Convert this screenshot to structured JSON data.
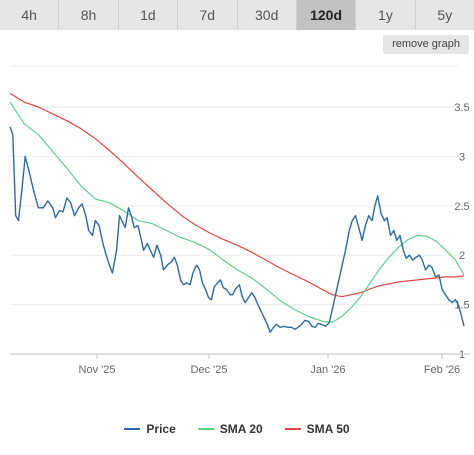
{
  "tabs": [
    {
      "label": "4h",
      "active": false
    },
    {
      "label": "8h",
      "active": false
    },
    {
      "label": "1d",
      "active": false
    },
    {
      "label": "7d",
      "active": false
    },
    {
      "label": "30d",
      "active": false
    },
    {
      "label": "120d",
      "active": true
    },
    {
      "label": "1y",
      "active": false
    },
    {
      "label": "5y",
      "active": false
    }
  ],
  "remove_graph_label": "remove graph",
  "colors": {
    "price": "#2b6aa6",
    "sma20": "#5fcf8a",
    "sma50": "#e0483e",
    "active_tab": "#c2c2c2"
  },
  "chart_data": {
    "type": "line",
    "x_ticks": [
      "Nov '25",
      "Dec '25",
      "Jan '26",
      "Feb '26"
    ],
    "y_ticks": [
      "1",
      "1.5",
      "2",
      "2.5",
      "3",
      "3.5"
    ],
    "ylim": [
      1,
      3.9
    ],
    "grid": true,
    "legend_position": "bottom-center",
    "x_range_days": [
      0,
      120
    ],
    "x_tick_days": [
      28,
      58,
      89,
      120
    ],
    "series": [
      {
        "name": "Price",
        "key": "price",
        "points": [
          [
            0,
            3.3
          ],
          [
            0.6,
            3.22
          ],
          [
            1.2,
            2.4
          ],
          [
            1.8,
            2.35
          ],
          [
            2.6,
            2.7
          ],
          [
            3.2,
            3.0
          ],
          [
            4,
            2.85
          ],
          [
            5,
            2.65
          ],
          [
            6,
            2.48
          ],
          [
            7,
            2.48
          ],
          [
            8,
            2.55
          ],
          [
            9,
            2.48
          ],
          [
            9.6,
            2.38
          ],
          [
            10.4,
            2.45
          ],
          [
            11.2,
            2.44
          ],
          [
            12,
            2.58
          ],
          [
            12.8,
            2.53
          ],
          [
            13.6,
            2.4
          ],
          [
            14.5,
            2.48
          ],
          [
            15.2,
            2.52
          ],
          [
            16,
            2.4
          ],
          [
            16.6,
            2.25
          ],
          [
            17.4,
            2.2
          ],
          [
            18,
            2.35
          ],
          [
            18.8,
            2.3
          ],
          [
            19.6,
            2.12
          ],
          [
            20.3,
            2.0
          ],
          [
            21,
            1.9
          ],
          [
            21.6,
            1.82
          ],
          [
            22.5,
            2.05
          ],
          [
            23.1,
            2.4
          ],
          [
            23.6,
            2.35
          ],
          [
            24.3,
            2.28
          ],
          [
            25,
            2.48
          ],
          [
            25.6,
            2.4
          ],
          [
            26.2,
            2.28
          ],
          [
            27,
            2.3
          ],
          [
            27.5,
            2.2
          ],
          [
            28.2,
            2.05
          ],
          [
            29,
            2.12
          ],
          [
            29.6,
            2.05
          ],
          [
            30.3,
            1.98
          ],
          [
            31,
            2.1
          ],
          [
            31.8,
            2.0
          ],
          [
            32.4,
            1.85
          ],
          [
            33.2,
            1.9
          ],
          [
            34,
            1.93
          ],
          [
            34.7,
            1.98
          ],
          [
            35.3,
            1.9
          ],
          [
            36,
            1.75
          ],
          [
            36.6,
            1.7
          ],
          [
            37.3,
            1.72
          ],
          [
            38,
            1.7
          ],
          [
            38.6,
            1.82
          ],
          [
            39.4,
            1.9
          ],
          [
            40,
            1.85
          ],
          [
            40.6,
            1.72
          ],
          [
            41.3,
            1.65
          ],
          [
            41.9,
            1.57
          ],
          [
            42.5,
            1.55
          ],
          [
            43.1,
            1.68
          ],
          [
            43.8,
            1.72
          ],
          [
            44.4,
            1.75
          ],
          [
            45,
            1.67
          ],
          [
            45.8,
            1.65
          ],
          [
            46.4,
            1.6
          ],
          [
            47,
            1.6
          ],
          [
            47.6,
            1.66
          ],
          [
            48.4,
            1.7
          ],
          [
            49,
            1.58
          ],
          [
            49.6,
            1.52
          ],
          [
            50.3,
            1.57
          ],
          [
            51,
            1.62
          ],
          [
            51.6,
            1.58
          ],
          [
            52.3,
            1.5
          ],
          [
            53,
            1.43
          ],
          [
            53.6,
            1.37
          ],
          [
            54.3,
            1.3
          ],
          [
            54.9,
            1.22
          ],
          [
            55.6,
            1.27
          ],
          [
            56.2,
            1.3
          ],
          [
            57,
            1.27
          ],
          [
            57.8,
            1.28
          ],
          [
            58.6,
            1.27
          ],
          [
            59.4,
            1.27
          ],
          [
            60.1,
            1.25
          ],
          [
            60.8,
            1.27
          ],
          [
            61.5,
            1.3
          ],
          [
            62.2,
            1.34
          ],
          [
            63,
            1.33
          ],
          [
            63.7,
            1.28
          ],
          [
            64.4,
            1.27
          ],
          [
            65,
            1.31
          ],
          [
            65.8,
            1.3
          ],
          [
            66.6,
            1.28
          ],
          [
            67.4,
            1.32
          ],
          [
            68,
            1.45
          ],
          [
            68.7,
            1.6
          ],
          [
            69.4,
            1.75
          ],
          [
            70.1,
            1.9
          ],
          [
            70.8,
            2.05
          ],
          [
            71.6,
            2.25
          ],
          [
            72.2,
            2.35
          ],
          [
            72.9,
            2.4
          ],
          [
            73.5,
            2.3
          ],
          [
            74.3,
            2.15
          ],
          [
            75,
            2.3
          ],
          [
            75.7,
            2.4
          ],
          [
            76.4,
            2.35
          ],
          [
            77,
            2.5
          ],
          [
            77.6,
            2.6
          ],
          [
            78.3,
            2.42
          ],
          [
            79,
            2.35
          ],
          [
            79.6,
            2.38
          ],
          [
            80.3,
            2.2
          ],
          [
            81,
            2.25
          ],
          [
            81.6,
            2.15
          ],
          [
            82.3,
            2.2
          ],
          [
            83,
            2.05
          ],
          [
            83.6,
            1.97
          ],
          [
            84.3,
            2.0
          ],
          [
            85,
            1.95
          ],
          [
            85.7,
            1.98
          ],
          [
            86.4,
            2.0
          ],
          [
            87,
            1.95
          ],
          [
            87.7,
            1.85
          ],
          [
            88.4,
            1.9
          ],
          [
            89,
            1.88
          ],
          [
            89.8,
            1.78
          ],
          [
            90.5,
            1.8
          ],
          [
            91.2,
            1.65
          ],
          [
            91.9,
            1.6
          ],
          [
            92.6,
            1.55
          ],
          [
            93.3,
            1.52
          ],
          [
            94,
            1.55
          ],
          [
            94.6,
            1.5
          ],
          [
            95.3,
            1.38
          ],
          [
            95.8,
            1.28
          ]
        ]
      },
      {
        "name": "SMA 20",
        "key": "sma20",
        "points": [
          [
            0,
            3.55
          ],
          [
            3,
            3.33
          ],
          [
            6,
            3.22
          ],
          [
            9,
            3.05
          ],
          [
            12,
            2.88
          ],
          [
            15,
            2.7
          ],
          [
            18,
            2.57
          ],
          [
            21,
            2.53
          ],
          [
            24,
            2.45
          ],
          [
            27,
            2.35
          ],
          [
            30,
            2.32
          ],
          [
            33,
            2.25
          ],
          [
            36,
            2.18
          ],
          [
            39,
            2.13
          ],
          [
            42,
            2.06
          ],
          [
            45,
            1.95
          ],
          [
            48,
            1.85
          ],
          [
            51,
            1.77
          ],
          [
            54,
            1.66
          ],
          [
            57,
            1.54
          ],
          [
            60,
            1.45
          ],
          [
            63,
            1.38
          ],
          [
            66,
            1.33
          ],
          [
            68,
            1.32
          ],
          [
            70,
            1.38
          ],
          [
            72,
            1.47
          ],
          [
            74,
            1.58
          ],
          [
            76,
            1.72
          ],
          [
            78,
            1.86
          ],
          [
            80,
            1.98
          ],
          [
            82,
            2.08
          ],
          [
            84,
            2.16
          ],
          [
            86,
            2.2
          ],
          [
            88,
            2.19
          ],
          [
            90,
            2.14
          ],
          [
            92,
            2.05
          ],
          [
            94,
            1.95
          ],
          [
            95.8,
            1.8
          ]
        ]
      },
      {
        "name": "SMA 50",
        "key": "sma50",
        "points": [
          [
            0,
            3.64
          ],
          [
            3,
            3.55
          ],
          [
            6,
            3.5
          ],
          [
            9,
            3.43
          ],
          [
            12,
            3.36
          ],
          [
            15,
            3.28
          ],
          [
            18,
            3.18
          ],
          [
            21,
            3.06
          ],
          [
            24,
            2.93
          ],
          [
            27,
            2.79
          ],
          [
            30,
            2.66
          ],
          [
            33,
            2.53
          ],
          [
            36,
            2.41
          ],
          [
            39,
            2.31
          ],
          [
            42,
            2.23
          ],
          [
            45,
            2.16
          ],
          [
            48,
            2.1
          ],
          [
            51,
            2.03
          ],
          [
            54,
            1.95
          ],
          [
            57,
            1.87
          ],
          [
            60,
            1.8
          ],
          [
            63,
            1.73
          ],
          [
            66,
            1.65
          ],
          [
            68,
            1.6
          ],
          [
            70,
            1.58
          ],
          [
            72,
            1.6
          ],
          [
            74,
            1.62
          ],
          [
            76,
            1.66
          ],
          [
            78,
            1.69
          ],
          [
            80,
            1.71
          ],
          [
            82,
            1.73
          ],
          [
            84,
            1.74
          ],
          [
            86,
            1.75
          ],
          [
            88,
            1.76
          ],
          [
            90,
            1.77
          ],
          [
            92,
            1.78
          ],
          [
            94,
            1.78
          ],
          [
            95.8,
            1.79
          ]
        ]
      }
    ]
  }
}
